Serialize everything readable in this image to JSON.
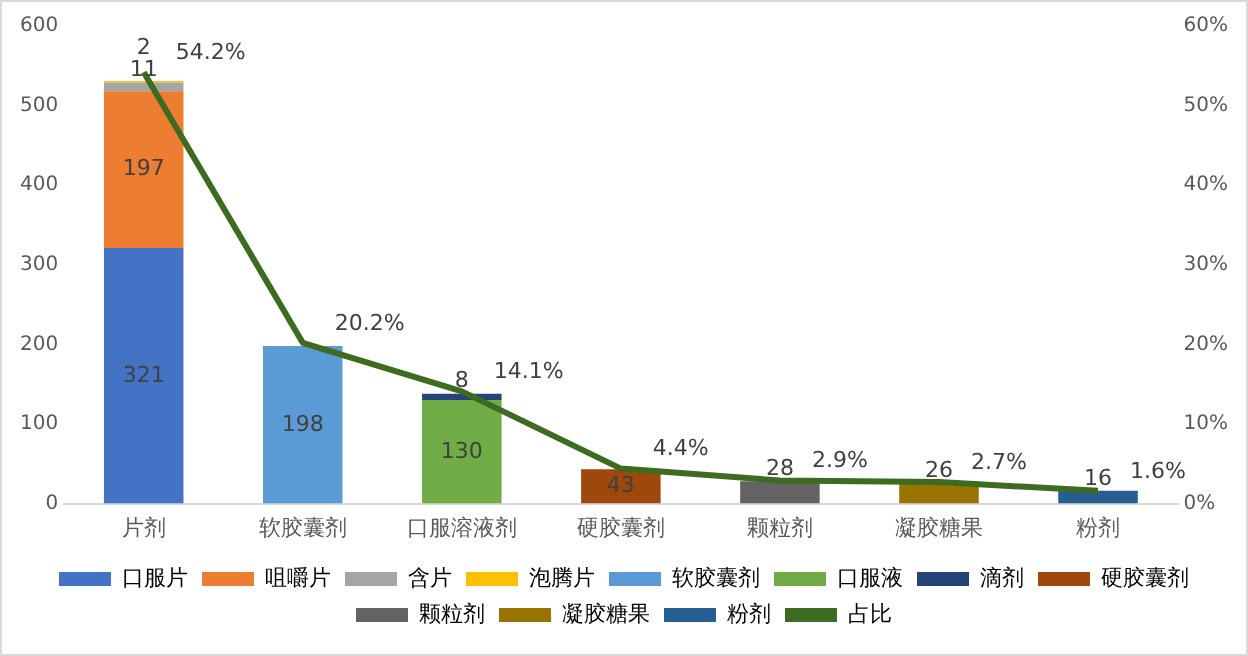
{
  "chart_data": {
    "type": "bar",
    "stacked": true,
    "categories": [
      "片剂",
      "软胶囊剂",
      "口服溶液剂",
      "硬胶囊剂",
      "颗粒剂",
      "凝胶糖果",
      "粉剂"
    ],
    "series": [
      {
        "name": "口服片",
        "color": "#4472c4",
        "values": [
          321,
          null,
          null,
          null,
          null,
          null,
          null
        ]
      },
      {
        "name": "咀嚼片",
        "color": "#ed7d31",
        "values": [
          197,
          null,
          null,
          null,
          null,
          null,
          null
        ]
      },
      {
        "name": "含片",
        "color": "#a5a5a5",
        "values": [
          11,
          null,
          null,
          null,
          null,
          null,
          null
        ]
      },
      {
        "name": "泡腾片",
        "color": "#ffc000",
        "values": [
          2,
          null,
          null,
          null,
          null,
          null,
          null
        ]
      },
      {
        "name": "软胶囊剂",
        "color": "#5b9bd5",
        "values": [
          null,
          198,
          null,
          null,
          null,
          null,
          null
        ]
      },
      {
        "name": "口服液",
        "color": "#70ad47",
        "values": [
          null,
          null,
          130,
          null,
          null,
          null,
          null
        ]
      },
      {
        "name": "滴剂",
        "color": "#264478",
        "values": [
          null,
          null,
          8,
          null,
          null,
          null,
          null
        ]
      },
      {
        "name": "硬胶囊剂",
        "color": "#9e480e",
        "values": [
          null,
          null,
          null,
          43,
          null,
          null,
          null
        ]
      },
      {
        "name": "颗粒剂",
        "color": "#636363",
        "values": [
          null,
          null,
          null,
          null,
          28,
          null,
          null
        ]
      },
      {
        "name": "凝胶糖果",
        "color": "#997300",
        "values": [
          null,
          null,
          null,
          null,
          null,
          26,
          null
        ]
      },
      {
        "name": "粉剂",
        "color": "#255e91",
        "values": [
          null,
          null,
          null,
          null,
          null,
          null,
          16
        ]
      },
      {
        "name": "占比",
        "type": "line",
        "axis": "y2",
        "color": "#3d6b1f",
        "values": [
          54.2,
          20.2,
          14.1,
          4.4,
          2.9,
          2.7,
          1.6
        ],
        "value_labels": [
          "54.2%",
          "20.2%",
          "14.1%",
          "4.4%",
          "2.9%",
          "2.7%",
          "1.6%"
        ]
      }
    ],
    "ylim": [
      0,
      600
    ],
    "yticks": [
      0,
      100,
      200,
      300,
      400,
      500,
      600
    ],
    "y2lim": [
      0,
      60
    ],
    "y2ticks": [
      {
        "value": 0,
        "label": "0%"
      },
      {
        "value": 10,
        "label": "10%"
      },
      {
        "value": 20,
        "label": "20%"
      },
      {
        "value": 30,
        "label": "30%"
      },
      {
        "value": 40,
        "label": "40%"
      },
      {
        "value": 50,
        "label": "50%"
      },
      {
        "value": 60,
        "label": "60%"
      }
    ],
    "data_labels": true,
    "legend": "bottom",
    "grid": false,
    "marker": "none"
  }
}
